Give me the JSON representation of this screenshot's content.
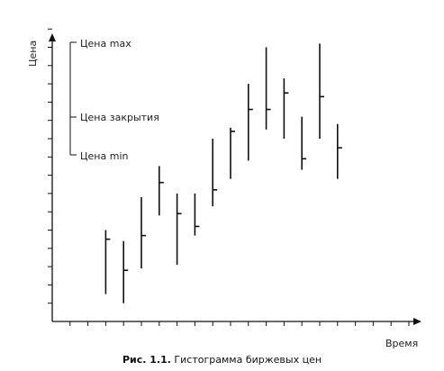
{
  "caption": {
    "prefix": "Рис. 1.1.",
    "text": " Гистограмма биржевых цен"
  },
  "chart_data": {
    "type": "ohlc-bar",
    "ylabel": "Цена",
    "xlabel": "Время",
    "legend": {
      "high": "Цена max",
      "close": "Цена закрытия",
      "low": "Цена min"
    },
    "ylim": [
      0,
      16
    ],
    "x_ticks": 20,
    "y_ticks": 16,
    "bars": [
      {
        "x": 3,
        "high": 5.0,
        "low": 1.5,
        "close": 4.5
      },
      {
        "x": 4,
        "high": 4.4,
        "low": 1.0,
        "close": 2.8
      },
      {
        "x": 5,
        "high": 6.8,
        "low": 2.9,
        "close": 4.7
      },
      {
        "x": 6,
        "high": 8.5,
        "low": 5.8,
        "close": 7.6
      },
      {
        "x": 7,
        "high": 7.0,
        "low": 3.1,
        "close": 5.9
      },
      {
        "x": 8,
        "high": 7.0,
        "low": 4.7,
        "close": 5.2
      },
      {
        "x": 9,
        "high": 10.0,
        "low": 6.3,
        "close": 7.2
      },
      {
        "x": 10,
        "high": 10.6,
        "low": 7.8,
        "close": 10.4
      },
      {
        "x": 11,
        "high": 13.0,
        "low": 8.8,
        "close": 11.6
      },
      {
        "x": 12,
        "high": 15.0,
        "low": 10.5,
        "close": 11.6
      },
      {
        "x": 13,
        "high": 13.3,
        "low": 10.0,
        "close": 12.5
      },
      {
        "x": 14,
        "high": 11.2,
        "low": 8.3,
        "close": 8.9
      },
      {
        "x": 15,
        "high": 15.2,
        "low": 10.0,
        "close": 12.3
      },
      {
        "x": 16,
        "high": 10.8,
        "low": 7.8,
        "close": 9.5
      }
    ]
  }
}
